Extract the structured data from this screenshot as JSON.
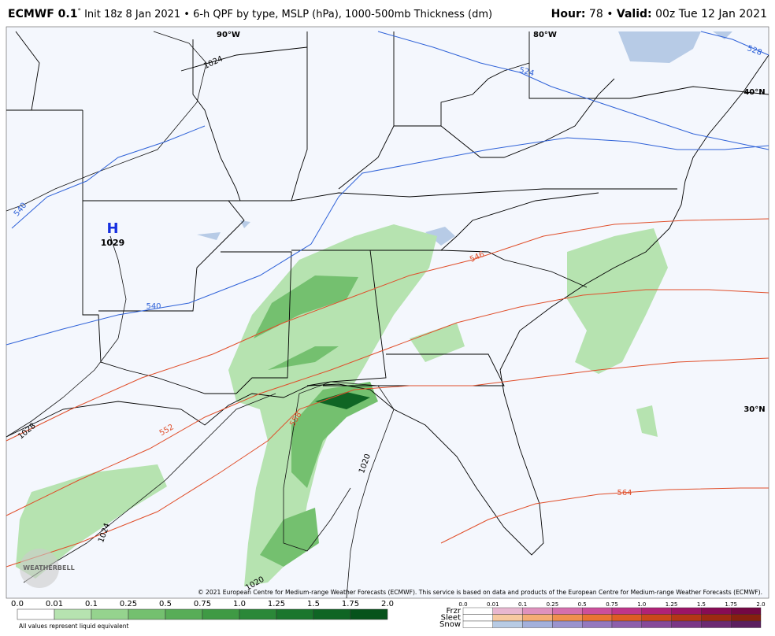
{
  "header": {
    "model": "ECMWF 0.1",
    "degree": "°",
    "description": " Init 18z 8 Jan 2021 • 6-h QPF by type, MSLP (hPa), 1000-500mb Thickness (dm)",
    "hour_label": "Hour:",
    "hour": "78",
    "valid_label": "Valid:",
    "valid": "00z Tue 12 Jan 2021",
    "sep": "•"
  },
  "map": {
    "grid_labels": [
      "90°W",
      "80°W",
      "40°N",
      "30°N"
    ],
    "high": {
      "symbol": "H",
      "pressure": "1029"
    },
    "isobar_labels": [
      "1024",
      "1020",
      "1024",
      "1028",
      "1020"
    ],
    "thickness_blue_labels": [
      "524",
      "528",
      "540",
      "540"
    ],
    "thickness_red_labels": [
      "546",
      "552",
      "558",
      "564"
    ],
    "credit": "© 2021 European Centre for Medium-range Weather Forecasts (ECMWF). This service is based on data and products of the European Centre for Medium-range Weather Forecasts (ECMWF).",
    "logo": "WEATHERBELL"
  },
  "legend": {
    "ticks": [
      "0.0",
      "0.01",
      "0.1",
      "0.25",
      "0.5",
      "0.75",
      "1.0",
      "1.25",
      "1.5",
      "1.75",
      "2.0"
    ],
    "note": "All values represent liquid equivalent",
    "rain_colors": [
      "#ffffff",
      "#b6e3b0",
      "#95d38e",
      "#74c06f",
      "#58ad57",
      "#3f9a44",
      "#2b8838",
      "#1b762d",
      "#0f6524",
      "#06531b"
    ],
    "types": [
      "Frzr",
      "Sleet",
      "Snow"
    ],
    "type_colors": [
      [
        "#ffffff",
        "#e8b7d0",
        "#df92bd",
        "#d56fad",
        "#cc4f9b",
        "#bf3589",
        "#b02277",
        "#9c1566",
        "#880c55",
        "#740844"
      ],
      [
        "#ffffff",
        "#f7c9a0",
        "#f5ad74",
        "#f08f4e",
        "#ea7432",
        "#de5c24",
        "#cb481b",
        "#b53716",
        "#9e2a12",
        "#87200f"
      ],
      [
        "#ffffff",
        "#b8cbe4",
        "#a3b0db",
        "#9a93cd",
        "#9478bd",
        "#8d5fab",
        "#864a99",
        "#7a3786",
        "#6c2a72",
        "#5c1f5f"
      ]
    ]
  }
}
